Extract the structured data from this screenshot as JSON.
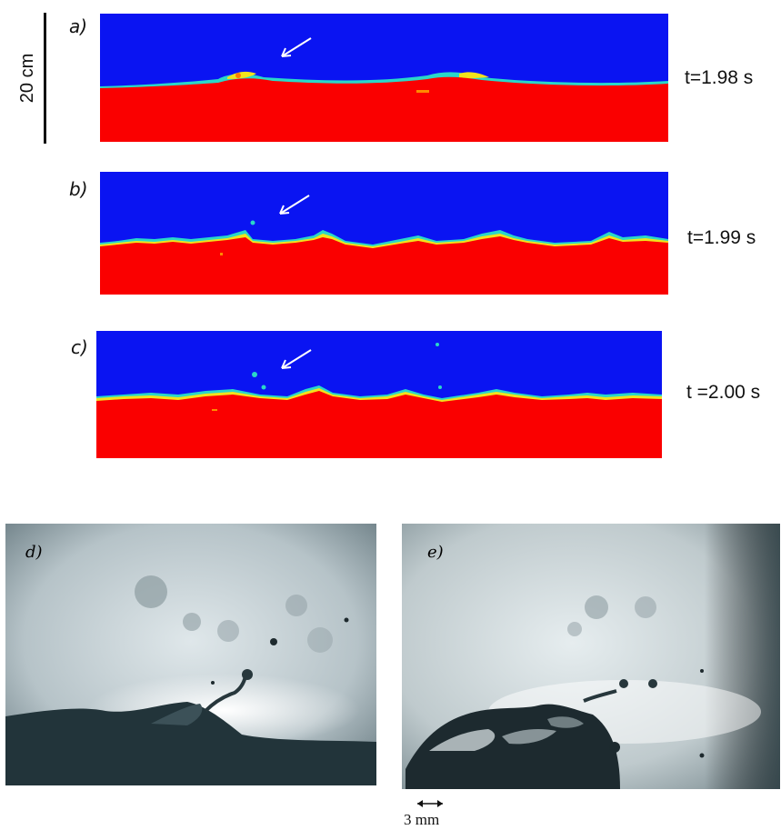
{
  "scale_bar": {
    "label": "20 cm"
  },
  "panels": [
    {
      "letter": "a)",
      "time": "t=1.98 s"
    },
    {
      "letter": "b)",
      "time": "t=1.99 s"
    },
    {
      "letter": "c)",
      "time": "t =2.00 s"
    }
  ],
  "photos": [
    {
      "letter": "d)"
    },
    {
      "letter": "e)"
    }
  ],
  "photo_scale": {
    "label": "3 mm"
  },
  "colors": {
    "air": "#0a14f2",
    "water": "#fa0000",
    "interface_mid": "#2ad7c8",
    "interface_warm": "#f2e21c"
  }
}
